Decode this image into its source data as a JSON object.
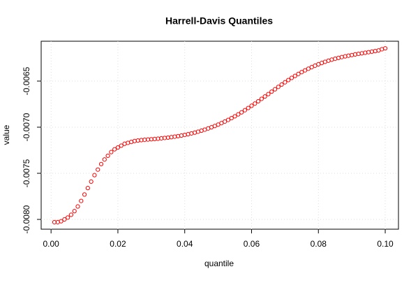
{
  "chart_data": {
    "type": "scatter",
    "title": "Harrell-Davis Quantiles",
    "x_label": "quantile",
    "y_label": "value",
    "series": [
      {
        "color": "#ff0000",
        "x": [
          0.001,
          0.002,
          0.003,
          0.004,
          0.005,
          0.006,
          0.007,
          0.008,
          0.009,
          0.01,
          0.011,
          0.012,
          0.013,
          0.014,
          0.015,
          0.016,
          0.017,
          0.018,
          0.019,
          0.02,
          0.021,
          0.022,
          0.023,
          0.024,
          0.025,
          0.026,
          0.027,
          0.028,
          0.029,
          0.03,
          0.031,
          0.032,
          0.033,
          0.034,
          0.035,
          0.036,
          0.037,
          0.038,
          0.039,
          0.04,
          0.041,
          0.042,
          0.043,
          0.044,
          0.045,
          0.046,
          0.047,
          0.048,
          0.049,
          0.05,
          0.051,
          0.052,
          0.053,
          0.054,
          0.055,
          0.056,
          0.057,
          0.058,
          0.059,
          0.06,
          0.061,
          0.062,
          0.063,
          0.064,
          0.065,
          0.066,
          0.067,
          0.068,
          0.069,
          0.07,
          0.071,
          0.072,
          0.073,
          0.074,
          0.075,
          0.076,
          0.077,
          0.078,
          0.079,
          0.08,
          0.081,
          0.082,
          0.083,
          0.084,
          0.085,
          0.086,
          0.087,
          0.088,
          0.089,
          0.09,
          0.091,
          0.092,
          0.093,
          0.094,
          0.095,
          0.096,
          0.097,
          0.098,
          0.099,
          0.1
        ],
        "values": [
          -0.00803,
          -0.00803,
          -0.00802,
          -0.008,
          -0.00798,
          -0.00795,
          -0.00791,
          -0.00786,
          -0.0078,
          -0.00773,
          -0.00766,
          -0.00759,
          -0.00752,
          -0.00746,
          -0.0074,
          -0.00735,
          -0.00731,
          -0.00727,
          -0.00724,
          -0.00722,
          -0.0072,
          -0.00718,
          -0.00717,
          -0.00716,
          -0.00715,
          -0.007145,
          -0.00714,
          -0.007137,
          -0.007134,
          -0.007131,
          -0.007128,
          -0.007125,
          -0.007121,
          -0.007117,
          -0.007113,
          -0.007108,
          -0.007103,
          -0.007097,
          -0.007091,
          -0.007084,
          -0.007076,
          -0.007068,
          -0.007059,
          -0.007049,
          -0.007038,
          -0.007027,
          -0.007014,
          -0.007001,
          -0.006987,
          -0.006972,
          -0.006956,
          -0.006939,
          -0.006921,
          -0.006902,
          -0.006882,
          -0.006861,
          -0.006839,
          -0.006816,
          -0.006792,
          -0.006768,
          -0.006744,
          -0.006719,
          -0.006693,
          -0.006667,
          -0.006641,
          -0.006615,
          -0.006589,
          -0.006563,
          -0.006538,
          -0.006513,
          -0.006489,
          -0.006466,
          -0.006444,
          -0.006423,
          -0.006403,
          -0.006384,
          -0.006366,
          -0.006349,
          -0.006333,
          -0.006318,
          -0.006304,
          -0.006291,
          -0.006279,
          -0.006268,
          -0.006258,
          -0.006249,
          -0.00624,
          -0.006232,
          -0.006225,
          -0.006218,
          -0.006211,
          -0.006205,
          -0.006199,
          -0.006193,
          -0.006187,
          -0.006181,
          -0.006175,
          -0.006168,
          -0.006155,
          -0.006145
        ]
      }
    ],
    "xlim": [
      -0.00296,
      0.10396
    ],
    "ylim": [
      -0.008106,
      -0.006068
    ],
    "xticks": [
      {
        "value": 0,
        "label": "0.00"
      },
      {
        "value": 0.02,
        "label": "0.02"
      },
      {
        "value": 0.04,
        "label": "0.04"
      },
      {
        "value": 0.06,
        "label": "0.06"
      },
      {
        "value": 0.08,
        "label": "0.08"
      },
      {
        "value": 0.1,
        "label": "0.10"
      }
    ],
    "yticks": [
      {
        "value": -0.008,
        "label": "-0.0080"
      },
      -0.0075,
      {
        "value": -0.007,
        "label": "-0.0070"
      },
      -0.0065
    ],
    "grid": true
  }
}
